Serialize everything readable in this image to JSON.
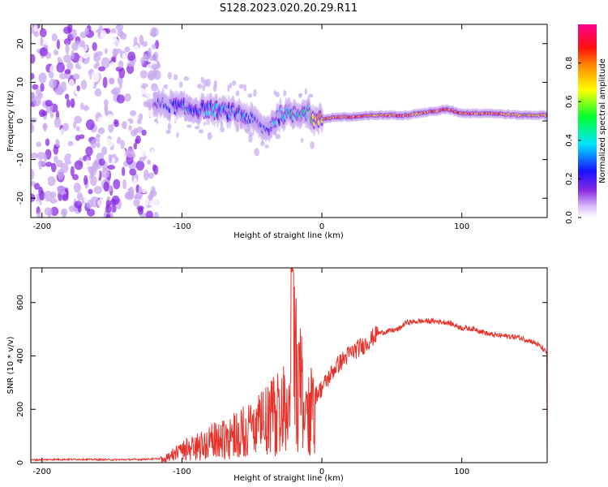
{
  "title": "S128.2023.020.20.29.R11",
  "colors": {
    "snr_line": "#e8312a",
    "axis": "#000000"
  },
  "chart_data": [
    {
      "type": "heatmap",
      "title": "S128.2023.020.20.29.R11",
      "xlabel": "Height of straight line (km)",
      "ylabel": "Frequency (Hz)",
      "xlim": [
        -208,
        161
      ],
      "ylim": [
        -25,
        25
      ],
      "xticks": [
        -200,
        -100,
        0,
        100
      ],
      "yticks": [
        -20,
        -10,
        0,
        10,
        20
      ],
      "colorbar": {
        "label": "Normalized spectral amplitude",
        "range": [
          0,
          1
        ],
        "ticks": [
          "0.0",
          "0.2",
          "0.4",
          "0.6",
          "0.8"
        ],
        "colormap": [
          "#ffffff",
          "#c8a8f0",
          "#8a2be2",
          "#1010ff",
          "#00e5ff",
          "#00ff00",
          "#ffff00",
          "#ff8000",
          "#ff0000",
          "#ff0080"
        ]
      },
      "ridge": {
        "x": [
          -120,
          -110,
          -100,
          -90,
          -80,
          -70,
          -60,
          -50,
          -40,
          -30,
          -20,
          -10,
          -5,
          0,
          10,
          20,
          40,
          60,
          80,
          90,
          100,
          120,
          140,
          161
        ],
        "frequency": [
          4.5,
          4.0,
          3.5,
          3.0,
          3.0,
          2.5,
          2.0,
          0.5,
          -2.5,
          1.5,
          2.0,
          2.5,
          0.0,
          0.5,
          1.0,
          1.0,
          1.5,
          1.5,
          2.5,
          3.0,
          2.0,
          2.0,
          1.5,
          1.5
        ],
        "peak_amplitude": [
          0.3,
          0.35,
          0.4,
          0.4,
          0.45,
          0.45,
          0.4,
          0.35,
          0.35,
          0.5,
          0.55,
          0.5,
          0.7,
          0.8,
          0.9,
          0.95,
          0.8,
          0.85,
          0.9,
          0.9,
          0.85,
          0.85,
          0.8,
          0.75
        ]
      },
      "noise_region": {
        "x_range": [
          -208,
          -117
        ],
        "amplitude": "low, scattered"
      }
    },
    {
      "type": "line",
      "xlabel": "Height of straight line (km)",
      "ylabel": "SNR (10 * v/v)",
      "xlim": [
        -208,
        161
      ],
      "ylim": [
        0,
        730
      ],
      "xticks": [
        -200,
        -100,
        0,
        100
      ],
      "yticks": [
        0,
        200,
        400,
        600
      ],
      "series": [
        {
          "x": [
            -208,
            -190,
            -170,
            -150,
            -130,
            -115,
            -110,
            -105,
            -100,
            -90,
            -80,
            -70,
            -60,
            -50,
            -40,
            -30,
            -25,
            -20,
            -15,
            -10,
            -5,
            0,
            10,
            20,
            30,
            40,
            50,
            55,
            60,
            70,
            80,
            90,
            100,
            110,
            120,
            130,
            140,
            150,
            155,
            161
          ],
          "values": [
            10,
            12,
            12,
            11,
            12,
            15,
            30,
            40,
            50,
            70,
            90,
            110,
            130,
            150,
            180,
            230,
            290,
            420,
            330,
            200,
            250,
            280,
            360,
            410,
            440,
            485,
            495,
            500,
            525,
            530,
            530,
            525,
            505,
            500,
            480,
            475,
            470,
            455,
            440,
            410
          ]
        }
      ]
    }
  ]
}
